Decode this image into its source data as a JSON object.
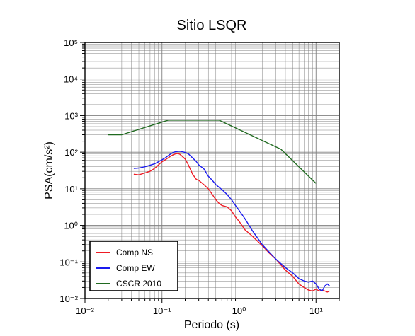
{
  "chart_data": {
    "type": "line",
    "title": "Sitio LSQR",
    "xlabel": "Periodo (s)",
    "ylabel": "PSA(cm/s²)",
    "xscale": "log",
    "yscale": "log",
    "xlim": [
      0.01,
      20
    ],
    "ylim": [
      0.01,
      100000
    ],
    "grid": true,
    "legend_position": "bottom-left",
    "x_tick_labels": [
      "10⁻²",
      "10⁻¹",
      "10⁰",
      "10¹"
    ],
    "y_tick_labels": [
      "10⁻²",
      "10⁻¹",
      "10⁰",
      "10¹",
      "10²",
      "10³",
      "10⁴",
      "10⁵"
    ],
    "series": [
      {
        "name": "Comp NS",
        "color": "#ee1b24",
        "x": [
          0.043,
          0.05,
          0.06,
          0.07,
          0.08,
          0.09,
          0.1,
          0.11,
          0.12,
          0.13,
          0.14,
          0.15,
          0.16,
          0.17,
          0.18,
          0.2,
          0.22,
          0.25,
          0.28,
          0.3,
          0.35,
          0.4,
          0.45,
          0.5,
          0.55,
          0.6,
          0.7,
          0.8,
          0.9,
          1.0,
          1.2,
          1.5,
          2.0,
          2.5,
          3.0,
          4.0,
          5.0,
          6.0,
          7.0,
          8.0,
          9.0,
          10.0,
          11.0,
          12.0,
          13.0,
          14.0,
          15.0
        ],
        "y": [
          25,
          24,
          27,
          30,
          36,
          45,
          55,
          62,
          70,
          78,
          85,
          90,
          92,
          88,
          80,
          65,
          45,
          25,
          18,
          17,
          13,
          10,
          7,
          5,
          4.0,
          3.5,
          3.2,
          2.5,
          1.7,
          1.3,
          0.75,
          0.5,
          0.28,
          0.17,
          0.12,
          0.06,
          0.04,
          0.025,
          0.02,
          0.017,
          0.016,
          0.018,
          0.016,
          0.017,
          0.016,
          0.015,
          0.016
        ]
      },
      {
        "name": "Comp EW",
        "color": "#1a1aee",
        "x": [
          0.043,
          0.05,
          0.06,
          0.07,
          0.08,
          0.09,
          0.1,
          0.11,
          0.12,
          0.13,
          0.14,
          0.15,
          0.16,
          0.17,
          0.18,
          0.2,
          0.22,
          0.25,
          0.28,
          0.3,
          0.35,
          0.4,
          0.45,
          0.5,
          0.55,
          0.6,
          0.7,
          0.8,
          0.9,
          1.0,
          1.2,
          1.5,
          2.0,
          2.5,
          3.0,
          4.0,
          5.0,
          6.0,
          7.0,
          8.0,
          9.0,
          10.0,
          11.0,
          12.0,
          13.0,
          14.0,
          15.0
        ],
        "y": [
          36,
          37,
          40,
          44,
          48,
          55,
          62,
          70,
          80,
          90,
          98,
          103,
          105,
          106,
          104,
          98,
          90,
          70,
          55,
          45,
          35,
          22,
          17,
          13,
          11,
          9.5,
          7,
          5,
          3.5,
          2.6,
          1.5,
          0.7,
          0.3,
          0.18,
          0.12,
          0.07,
          0.05,
          0.035,
          0.03,
          0.028,
          0.03,
          0.025,
          0.018,
          0.016,
          0.022,
          0.025,
          0.022
        ]
      },
      {
        "name": "CSCR 2010",
        "color": "#206a20",
        "x": [
          0.02,
          0.03,
          0.12,
          0.55,
          3.5,
          10.0
        ],
        "y": [
          300,
          300,
          750,
          750,
          120,
          14
        ]
      }
    ]
  }
}
